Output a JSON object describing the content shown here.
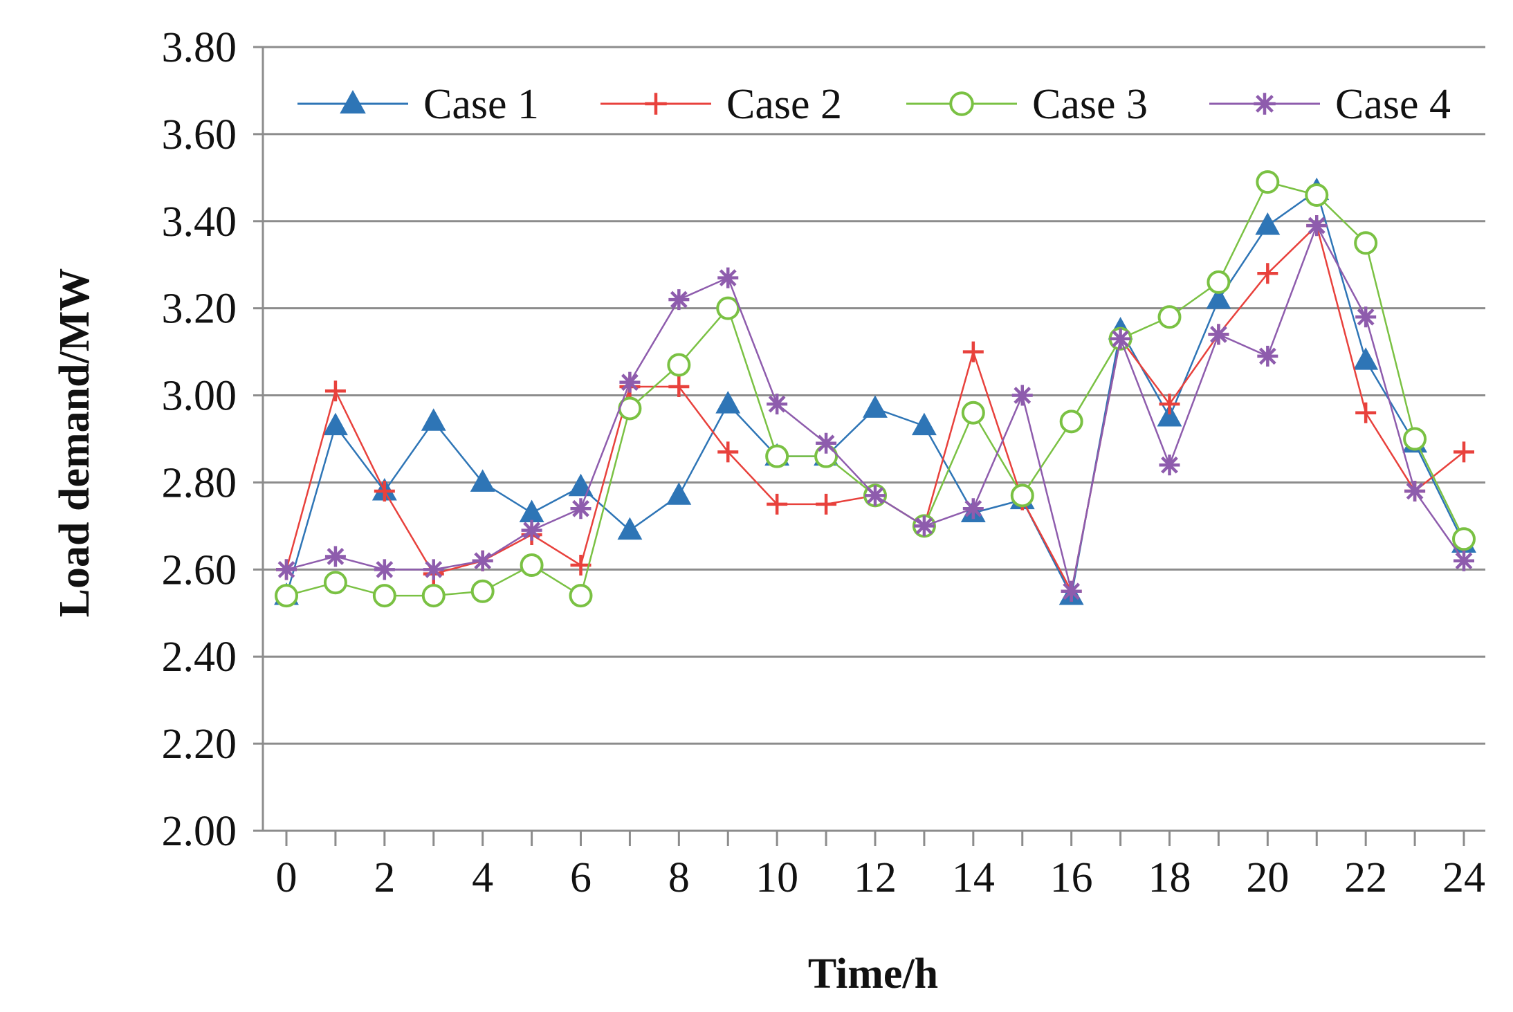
{
  "chart_data": {
    "type": "line",
    "title": "",
    "xlabel": "Time/h",
    "ylabel": "Load demand/MW",
    "xlim": [
      0,
      24
    ],
    "ylim": [
      2.0,
      3.8
    ],
    "x_ticks": [
      "0",
      "2",
      "4",
      "6",
      "8",
      "10",
      "12",
      "14",
      "16",
      "18",
      "20",
      "22",
      "24"
    ],
    "y_ticks": [
      "2.00",
      "2.20",
      "2.40",
      "2.60",
      "2.80",
      "3.00",
      "3.20",
      "3.40",
      "3.60",
      "3.80"
    ],
    "grid": "horizontal",
    "legend_position": "top",
    "x": [
      0,
      1,
      2,
      3,
      4,
      5,
      6,
      7,
      8,
      9,
      10,
      11,
      12,
      13,
      14,
      15,
      16,
      17,
      18,
      19,
      20,
      21,
      22,
      23,
      24
    ],
    "series": [
      {
        "name": "Case 1",
        "color": "#2E75B6",
        "marker": "triangle",
        "values": [
          2.54,
          2.93,
          2.78,
          2.94,
          2.8,
          2.73,
          2.79,
          2.69,
          2.77,
          2.98,
          2.86,
          2.86,
          2.97,
          2.93,
          2.73,
          2.76,
          2.54,
          3.15,
          2.95,
          3.22,
          3.39,
          3.47,
          3.08,
          2.89,
          2.66
        ]
      },
      {
        "name": "Case 2",
        "color": "#E8413C",
        "marker": "plus",
        "values": [
          2.6,
          3.01,
          2.78,
          2.59,
          2.62,
          2.68,
          2.61,
          3.02,
          3.02,
          2.87,
          2.75,
          2.75,
          2.77,
          2.7,
          3.1,
          2.76,
          2.55,
          3.13,
          2.98,
          3.14,
          3.28,
          3.39,
          2.96,
          2.78,
          2.87
        ]
      },
      {
        "name": "Case 3",
        "color": "#7AC143",
        "marker": "circle",
        "values": [
          2.54,
          2.57,
          2.54,
          2.54,
          2.55,
          2.61,
          2.54,
          2.97,
          3.07,
          3.2,
          2.86,
          2.86,
          2.77,
          2.7,
          2.96,
          2.77,
          2.94,
          3.13,
          3.18,
          3.26,
          3.49,
          3.46,
          3.35,
          2.9,
          2.67
        ]
      },
      {
        "name": "Case 4",
        "color": "#8E5CAD",
        "marker": "star",
        "values": [
          2.6,
          2.63,
          2.6,
          2.6,
          2.62,
          2.69,
          2.74,
          3.03,
          3.22,
          3.27,
          2.98,
          2.89,
          2.77,
          2.7,
          2.74,
          3.0,
          2.55,
          3.13,
          2.84,
          3.14,
          3.09,
          3.39,
          3.18,
          2.78,
          2.62
        ]
      }
    ]
  }
}
